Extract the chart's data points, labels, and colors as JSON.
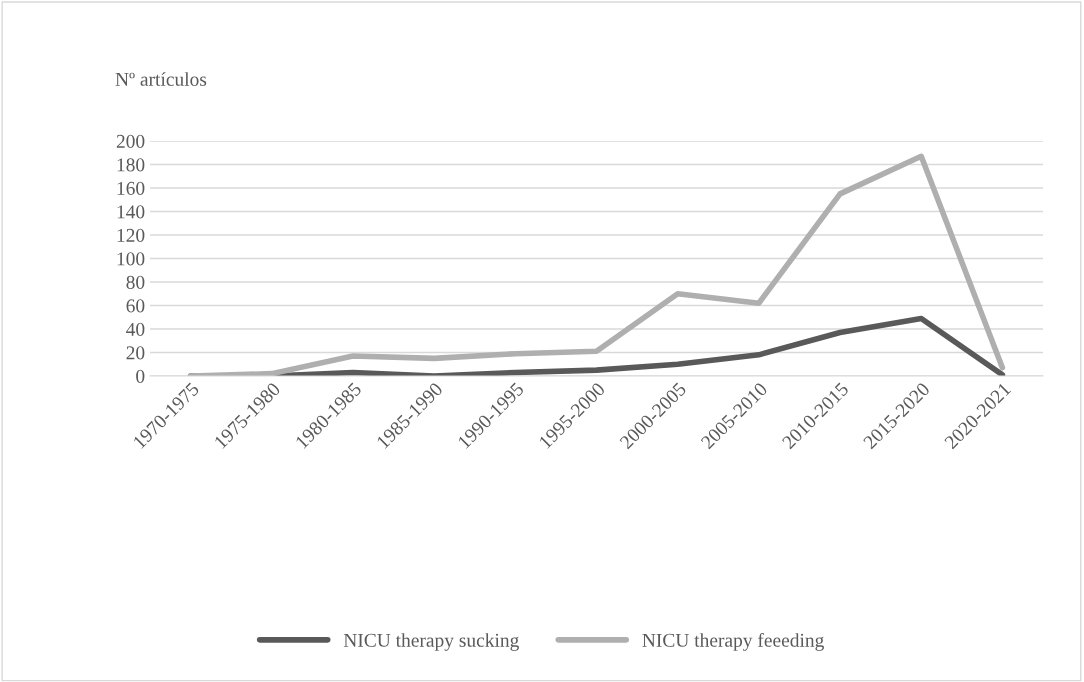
{
  "chart_data": {
    "type": "line",
    "ylabel": "Nº artículos",
    "categories": [
      "1970-1975",
      "1975-1980",
      "1980-1985",
      "1985-1990",
      "1990-1995",
      "1995-2000",
      "2000-2005",
      "2005-2010",
      "2010-2015",
      "2015-2020",
      "2020-2021"
    ],
    "series": [
      {
        "name": "NICU therapy sucking",
        "color": "#595959",
        "values": [
          0,
          0,
          3,
          0,
          3,
          5,
          10,
          18,
          37,
          49,
          1
        ]
      },
      {
        "name": "NICU therapy feeeding",
        "color": "#afafaf",
        "values": [
          0,
          2,
          17,
          15,
          19,
          21,
          70,
          62,
          155,
          187,
          7
        ]
      }
    ],
    "ylim": [
      0,
      200
    ],
    "yticks": [
      0,
      20,
      40,
      60,
      80,
      100,
      120,
      140,
      160,
      180,
      200
    ],
    "grid": "y",
    "legend": "bottom",
    "marker": "none",
    "line_style": "solid"
  }
}
